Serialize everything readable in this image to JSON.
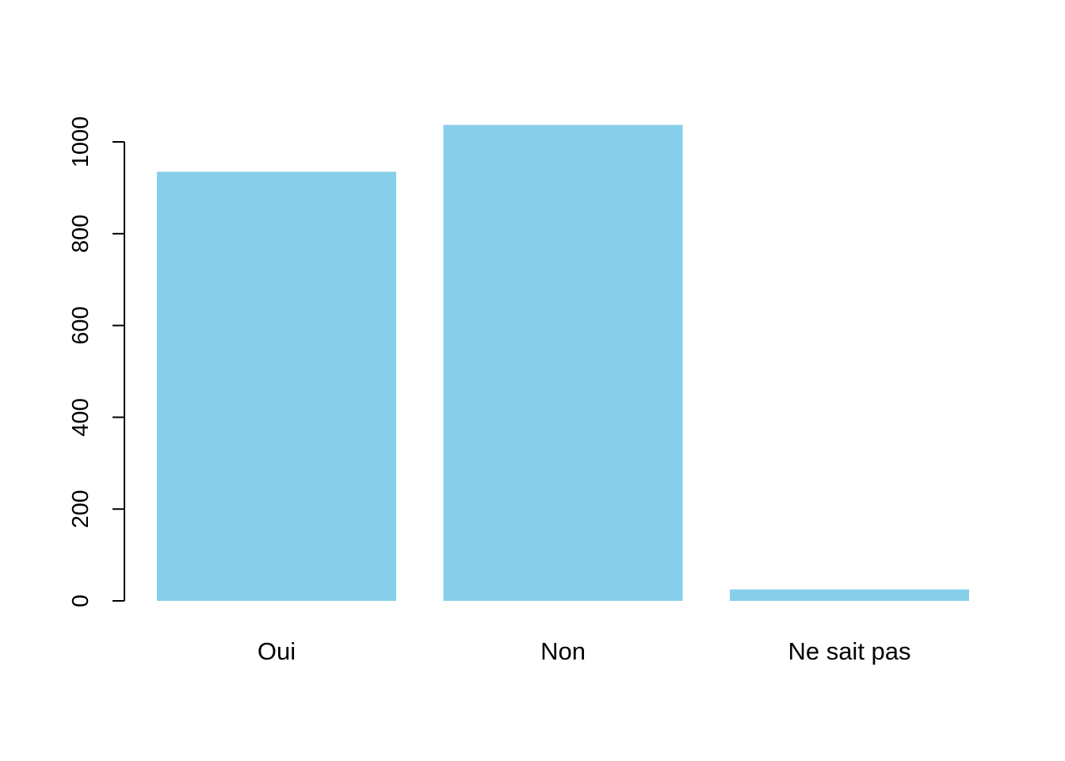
{
  "chart_data": {
    "type": "bar",
    "title": "",
    "xlabel": "",
    "ylabel": "",
    "categories": [
      "Oui",
      "Non",
      "Ne sait pas"
    ],
    "values": [
      935,
      1037,
      25
    ],
    "ylim": [
      0,
      1000
    ],
    "yticks": [
      "0",
      "200",
      "400",
      "600",
      "800",
      "1000"
    ],
    "bar_color": "#87CEEB",
    "grid": false,
    "legend": "none"
  }
}
